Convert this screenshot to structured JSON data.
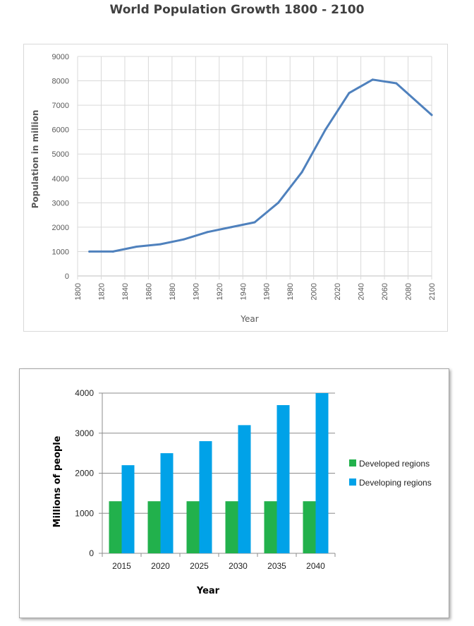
{
  "title": "World Population Growth 1800 - 2100",
  "chart_data": [
    {
      "type": "line",
      "title": "World Population Growth 1800 - 2100",
      "xlabel": "Year",
      "ylabel": "Population in million",
      "xlim": [
        1800,
        2100
      ],
      "ylim": [
        0,
        9000
      ],
      "x_ticks": [
        "1800",
        "1820",
        "1840",
        "1860",
        "1880",
        "1900",
        "1920",
        "1940",
        "1960",
        "1980",
        "2000",
        "2020",
        "2040",
        "2060",
        "2080",
        "2100"
      ],
      "y_ticks": [
        "0",
        "1000",
        "2000",
        "3000",
        "4000",
        "5000",
        "6000",
        "7000",
        "8000",
        "9000"
      ],
      "grid": true,
      "color": "#4f81bd",
      "x": [
        1810,
        1830,
        1850,
        1870,
        1890,
        1910,
        1930,
        1950,
        1970,
        1990,
        2010,
        2030,
        2050,
        2070,
        2100
      ],
      "y": [
        1000,
        1000,
        1200,
        1300,
        1500,
        1800,
        2000,
        2200,
        3000,
        4250,
        6000,
        7500,
        8050,
        7900,
        6600
      ]
    },
    {
      "type": "bar",
      "xlabel": "Year",
      "ylabel": "Millions of people",
      "categories": [
        "2015",
        "2020",
        "2025",
        "2030",
        "2035",
        "2040"
      ],
      "ylim": [
        0,
        4000
      ],
      "y_ticks": [
        "0",
        "1000",
        "2000",
        "3000",
        "4000"
      ],
      "grid": true,
      "legend_position": "right",
      "series": [
        {
          "name": "Developed regions",
          "color": "#22b14c",
          "values": [
            1300,
            1300,
            1300,
            1300,
            1300,
            1300
          ]
        },
        {
          "name": "Developing regions",
          "color": "#00a2e8",
          "values": [
            2200,
            2500,
            2800,
            3200,
            3700,
            4000
          ]
        }
      ]
    }
  ]
}
